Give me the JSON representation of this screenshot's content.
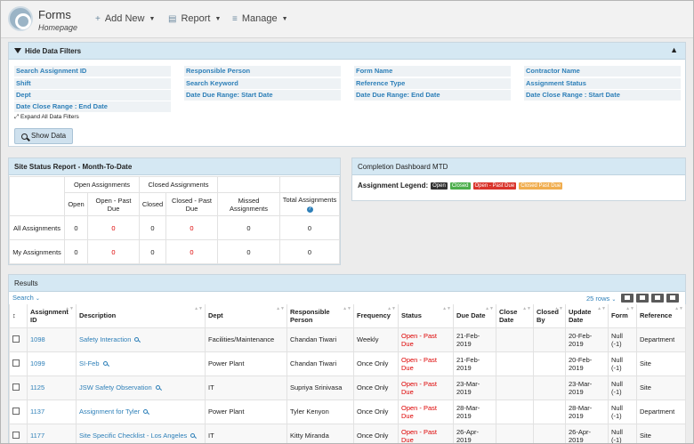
{
  "header": {
    "title": "Forms",
    "subtitle": "Homepage",
    "menu": [
      {
        "label": "Add New",
        "icon": "plus-icon"
      },
      {
        "label": "Report",
        "icon": "document-icon"
      },
      {
        "label": "Manage",
        "icon": "sliders-icon"
      }
    ]
  },
  "filters": {
    "title": "Hide Data Filters",
    "fields": [
      "Search Assignment ID",
      "Responsible Person",
      "Form Name",
      "Contractor Name",
      "Shift",
      "Search Keyword",
      "Reference Type",
      "Assignment Status",
      "Dept",
      "Date Due Range: Start Date",
      "Date Due Range: End Date",
      "Date Close Range : Start Date",
      "Date Close Range : End Date"
    ],
    "expand_label": "Expand All Data Filters",
    "show_button": "Show Data"
  },
  "status_report": {
    "title": "Site Status Report - Month-To-Date",
    "group_open": "Open Assignments",
    "group_closed": "Closed Assignments",
    "columns": [
      "Open",
      "Open - Past Due",
      "Closed",
      "Closed - Past Due",
      "Missed Assignments",
      "Total Assignments"
    ],
    "rows": [
      {
        "label": "All Assignments",
        "values": [
          "0",
          "0",
          "0",
          "0",
          "0",
          "0"
        ]
      },
      {
        "label": "My Assignments",
        "values": [
          "0",
          "0",
          "0",
          "0",
          "0",
          "0"
        ]
      }
    ]
  },
  "dashboard": {
    "title": "Completion Dashboard MTD",
    "legend_label": "Assignment Legend:",
    "legend": [
      {
        "label": "Open",
        "color": "#333333"
      },
      {
        "label": "Closed",
        "color": "#4cae4c"
      },
      {
        "label": "Open - Past Due",
        "color": "#d9342b"
      },
      {
        "label": "Closed Past Due",
        "color": "#f0ad4e"
      }
    ]
  },
  "results": {
    "title": "Results",
    "search_label": "Search",
    "rows_label": "25 rows",
    "columns": [
      "Assignment ID",
      "Description",
      "Dept",
      "Responsible Person",
      "Frequency",
      "Status",
      "Due Date",
      "Close Date",
      "Closed By",
      "Update Date",
      "Form",
      "Reference"
    ],
    "rows": [
      {
        "id": "1098",
        "description": "Safety Interaction",
        "dept": "Facilities/Maintenance",
        "person": "Chandan Tiwari",
        "frequency": "Weekly",
        "status": "Open - Past Due",
        "due": "21-Feb-2019",
        "close": "",
        "closed_by": "",
        "update": "20-Feb-2019",
        "form": "Null (-1)",
        "reference": "Department"
      },
      {
        "id": "1099",
        "description": "SI-Feb",
        "dept": "Power Plant",
        "person": "Chandan Tiwari",
        "frequency": "Once Only",
        "status": "Open - Past Due",
        "due": "21-Feb-2019",
        "close": "",
        "closed_by": "",
        "update": "20-Feb-2019",
        "form": "Null (-1)",
        "reference": "Site"
      },
      {
        "id": "1125",
        "description": "JSW Safety Observation",
        "dept": "IT",
        "person": "Supriya Srinivasa",
        "frequency": "Once Only",
        "status": "Open - Past Due",
        "due": "23-Mar-2019",
        "close": "",
        "closed_by": "",
        "update": "23-Mar-2019",
        "form": "Null (-1)",
        "reference": "Site"
      },
      {
        "id": "1137",
        "description": "Assignment for Tyler",
        "dept": "Power Plant",
        "person": "Tyler Kenyon",
        "frequency": "Once Only",
        "status": "Open - Past Due",
        "due": "28-Mar-2019",
        "close": "",
        "closed_by": "",
        "update": "28-Mar-2019",
        "form": "Null (-1)",
        "reference": "Department"
      },
      {
        "id": "1177",
        "description": "Site Specific Checklist - Los Angeles",
        "dept": "IT",
        "person": "Kitty Miranda",
        "frequency": "Once Only",
        "status": "Open - Past Due",
        "due": "26-Apr-2019",
        "close": "",
        "closed_by": "",
        "update": "26-Apr-2019",
        "form": "Null (-1)",
        "reference": "Site"
      }
    ]
  }
}
